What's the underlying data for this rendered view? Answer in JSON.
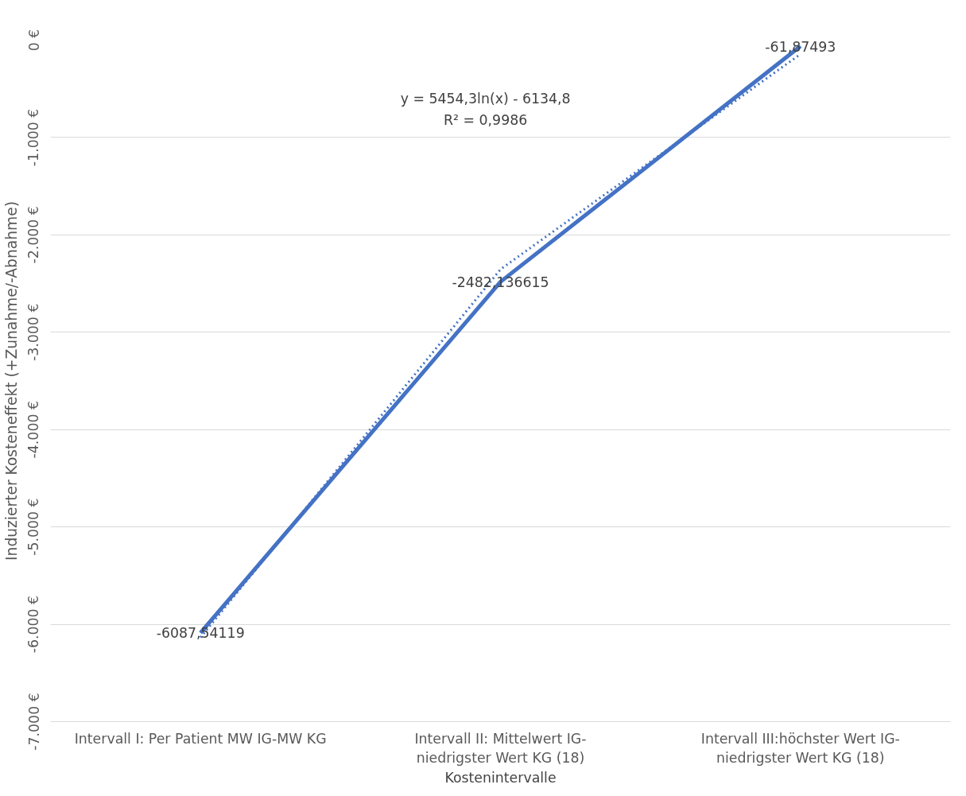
{
  "chart_data": {
    "type": "line",
    "categories": [
      "Intervall I: Per Patient MW IG-MW KG",
      "Intervall II: Mittelwert IG-niedrigster Wert KG (18)",
      "Intervall III:höchster Wert IG-niedrigster Wert KG (18)"
    ],
    "series": [
      {
        "color": "#4472c4",
        "values": [
          -6087.54119,
          -2482.136615,
          -61.87493
        ],
        "value_labels": [
          "-6087,54119",
          "-2482,136615",
          "-61,87493"
        ],
        "line_style": "solid"
      },
      {
        "type": "line",
        "color": "#4472c4",
        "line_style": "dotted",
        "values": [
          -6135,
          -2354,
          -143
        ]
      }
    ],
    "ylim": [
      -7000,
      0
    ],
    "yticks": [
      {
        "value": 0,
        "label": "0 €"
      },
      {
        "value": -1000,
        "label": "-1.000 €"
      },
      {
        "value": -2000,
        "label": "-2.000 €"
      },
      {
        "value": -3000,
        "label": "-3.000 €"
      },
      {
        "value": -4000,
        "label": "-4.000 €"
      },
      {
        "value": -5000,
        "label": "-5.000 €"
      },
      {
        "value": -6000,
        "label": "-6.000 €"
      },
      {
        "value": -7000,
        "label": "-7.000 €"
      }
    ],
    "ylabel": "Induzierter Kosteneffekt (+Zunahme/-Abnahme)",
    "xlabel": "Kostenintervalle",
    "annotations": [
      "y = 5454,3ln(x) - 6134,8",
      "R² = 0,9986"
    ],
    "grid": "y"
  }
}
